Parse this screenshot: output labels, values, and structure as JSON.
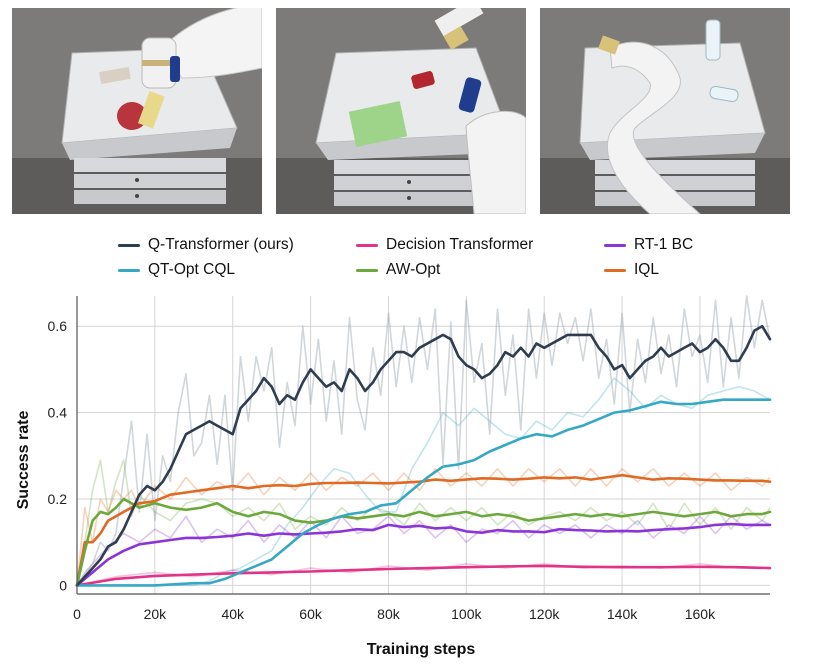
{
  "scenes": [
    {
      "name": "robot-scene-1",
      "description_icon": "robot-arm-table-scene-icon"
    },
    {
      "name": "robot-scene-2",
      "description_icon": "robot-arm-table-scene-icon"
    },
    {
      "name": "robot-scene-3",
      "description_icon": "robot-arm-table-scene-icon"
    }
  ],
  "chart_data": {
    "type": "line",
    "xlabel": "Training steps",
    "ylabel": "Success rate",
    "xlim": [
      0,
      178000
    ],
    "ylim": [
      -0.02,
      0.67
    ],
    "x_ticks": [
      0,
      20000,
      40000,
      60000,
      80000,
      100000,
      120000,
      140000,
      160000
    ],
    "x_tick_labels": [
      "0",
      "20k",
      "40k",
      "60k",
      "80k",
      "100k",
      "120k",
      "140k",
      "160k"
    ],
    "y_ticks": [
      0,
      0.2,
      0.4,
      0.6
    ],
    "y_tick_labels": [
      "0",
      "0.2",
      "0.4",
      "0.6"
    ],
    "grid": true,
    "legend_position": "top",
    "series": [
      {
        "name": "Q-Transformer (ours)",
        "color": "#2f3d4f",
        "x": [
          0,
          2000,
          4000,
          6000,
          8000,
          10000,
          12000,
          14000,
          16000,
          18000,
          20000,
          22000,
          24000,
          26000,
          28000,
          30000,
          32000,
          34000,
          36000,
          38000,
          40000,
          42000,
          44000,
          46000,
          48000,
          50000,
          52000,
          54000,
          56000,
          58000,
          60000,
          62000,
          64000,
          66000,
          68000,
          70000,
          72000,
          74000,
          76000,
          78000,
          80000,
          82000,
          84000,
          86000,
          88000,
          90000,
          92000,
          94000,
          96000,
          98000,
          100000,
          102000,
          104000,
          106000,
          108000,
          110000,
          112000,
          114000,
          116000,
          118000,
          120000,
          122000,
          124000,
          126000,
          128000,
          130000,
          132000,
          134000,
          136000,
          138000,
          140000,
          142000,
          144000,
          146000,
          148000,
          150000,
          152000,
          154000,
          156000,
          158000,
          160000,
          162000,
          164000,
          166000,
          168000,
          170000,
          172000,
          174000,
          176000,
          178000
        ],
        "values": [
          0.0,
          0.02,
          0.04,
          0.06,
          0.09,
          0.1,
          0.13,
          0.17,
          0.21,
          0.23,
          0.22,
          0.24,
          0.27,
          0.31,
          0.35,
          0.36,
          0.37,
          0.38,
          0.37,
          0.36,
          0.35,
          0.41,
          0.43,
          0.45,
          0.48,
          0.46,
          0.42,
          0.44,
          0.43,
          0.47,
          0.5,
          0.48,
          0.46,
          0.47,
          0.45,
          0.5,
          0.48,
          0.45,
          0.47,
          0.5,
          0.52,
          0.54,
          0.54,
          0.53,
          0.55,
          0.56,
          0.57,
          0.58,
          0.57,
          0.53,
          0.51,
          0.5,
          0.48,
          0.49,
          0.51,
          0.54,
          0.53,
          0.55,
          0.53,
          0.56,
          0.55,
          0.56,
          0.57,
          0.58,
          0.58,
          0.58,
          0.58,
          0.55,
          0.53,
          0.5,
          0.51,
          0.48,
          0.5,
          0.52,
          0.53,
          0.55,
          0.53,
          0.54,
          0.55,
          0.56,
          0.54,
          0.55,
          0.57,
          0.55,
          0.52,
          0.52,
          0.55,
          0.59,
          0.6,
          0.57
        ],
        "raw_values": [
          0.0,
          0.03,
          0.05,
          0.1,
          0.08,
          0.12,
          0.25,
          0.38,
          0.17,
          0.35,
          0.15,
          0.3,
          0.24,
          0.4,
          0.49,
          0.3,
          0.33,
          0.44,
          0.28,
          0.44,
          0.22,
          0.53,
          0.38,
          0.53,
          0.45,
          0.55,
          0.32,
          0.47,
          0.37,
          0.6,
          0.42,
          0.57,
          0.38,
          0.52,
          0.35,
          0.62,
          0.43,
          0.36,
          0.55,
          0.44,
          0.63,
          0.46,
          0.6,
          0.47,
          0.62,
          0.5,
          0.64,
          0.28,
          0.61,
          0.27,
          0.66,
          0.47,
          0.56,
          0.35,
          0.64,
          0.44,
          0.58,
          0.36,
          0.64,
          0.48,
          0.63,
          0.51,
          0.63,
          0.56,
          0.62,
          0.52,
          0.64,
          0.48,
          0.57,
          0.42,
          0.63,
          0.4,
          0.57,
          0.47,
          0.62,
          0.49,
          0.58,
          0.46,
          0.64,
          0.53,
          0.58,
          0.47,
          0.66,
          0.46,
          0.62,
          0.48,
          0.67,
          0.55,
          0.66,
          0.57
        ]
      },
      {
        "name": "QT-Opt CQL",
        "color": "#35a8c4",
        "x": [
          0,
          10000,
          20000,
          30000,
          34000,
          38000,
          42000,
          46000,
          50000,
          54000,
          58000,
          62000,
          66000,
          70000,
          74000,
          78000,
          82000,
          86000,
          90000,
          94000,
          98000,
          102000,
          106000,
          110000,
          114000,
          118000,
          122000,
          126000,
          130000,
          134000,
          138000,
          142000,
          146000,
          150000,
          154000,
          158000,
          162000,
          166000,
          170000,
          174000,
          178000
        ],
        "values": [
          0.0,
          0.0,
          0.0,
          0.005,
          0.005,
          0.015,
          0.03,
          0.045,
          0.06,
          0.09,
          0.12,
          0.14,
          0.155,
          0.165,
          0.17,
          0.185,
          0.19,
          0.22,
          0.25,
          0.275,
          0.28,
          0.29,
          0.31,
          0.325,
          0.34,
          0.35,
          0.345,
          0.36,
          0.37,
          0.385,
          0.4,
          0.405,
          0.415,
          0.425,
          0.42,
          0.42,
          0.425,
          0.43,
          0.43,
          0.43,
          0.43
        ],
        "raw_values": [
          0.0,
          0.0,
          0.0,
          0.0,
          0.01,
          0.03,
          0.04,
          0.06,
          0.08,
          0.14,
          0.18,
          0.23,
          0.27,
          0.26,
          0.21,
          0.17,
          0.17,
          0.27,
          0.33,
          0.4,
          0.37,
          0.41,
          0.38,
          0.35,
          0.34,
          0.38,
          0.36,
          0.4,
          0.39,
          0.43,
          0.48,
          0.45,
          0.41,
          0.44,
          0.42,
          0.41,
          0.44,
          0.45,
          0.46,
          0.45,
          0.43
        ]
      },
      {
        "name": "Decision Transformer",
        "color": "#e0338a",
        "x": [
          0,
          10000,
          20000,
          30000,
          40000,
          50000,
          60000,
          70000,
          80000,
          90000,
          100000,
          110000,
          120000,
          130000,
          140000,
          150000,
          160000,
          170000,
          178000
        ],
        "values": [
          0.0,
          0.015,
          0.022,
          0.025,
          0.028,
          0.03,
          0.032,
          0.035,
          0.038,
          0.04,
          0.042,
          0.044,
          0.045,
          0.043,
          0.042,
          0.042,
          0.043,
          0.042,
          0.04
        ],
        "raw_values": [
          0.0,
          0.02,
          0.03,
          0.02,
          0.035,
          0.025,
          0.04,
          0.03,
          0.045,
          0.035,
          0.05,
          0.04,
          0.05,
          0.04,
          0.045,
          0.04,
          0.05,
          0.04,
          0.04
        ]
      },
      {
        "name": "AW-Opt",
        "color": "#6da83c",
        "x": [
          0,
          2000,
          4000,
          6000,
          8000,
          10000,
          12000,
          14000,
          16000,
          20000,
          24000,
          28000,
          32000,
          36000,
          40000,
          44000,
          48000,
          52000,
          56000,
          60000,
          64000,
          68000,
          72000,
          76000,
          80000,
          84000,
          88000,
          92000,
          96000,
          100000,
          104000,
          108000,
          112000,
          116000,
          120000,
          124000,
          128000,
          132000,
          136000,
          140000,
          144000,
          148000,
          152000,
          156000,
          160000,
          164000,
          168000,
          172000,
          176000,
          178000
        ],
        "values": [
          0.0,
          0.08,
          0.15,
          0.17,
          0.165,
          0.18,
          0.2,
          0.19,
          0.18,
          0.19,
          0.18,
          0.175,
          0.18,
          0.19,
          0.17,
          0.16,
          0.17,
          0.165,
          0.15,
          0.145,
          0.15,
          0.16,
          0.155,
          0.16,
          0.165,
          0.16,
          0.17,
          0.16,
          0.165,
          0.17,
          0.16,
          0.165,
          0.16,
          0.15,
          0.155,
          0.16,
          0.165,
          0.16,
          0.165,
          0.16,
          0.165,
          0.17,
          0.165,
          0.16,
          0.165,
          0.17,
          0.16,
          0.165,
          0.165,
          0.17
        ],
        "raw_values": [
          0.0,
          0.1,
          0.22,
          0.29,
          0.17,
          0.24,
          0.29,
          0.16,
          0.21,
          0.17,
          0.15,
          0.19,
          0.2,
          0.19,
          0.16,
          0.18,
          0.15,
          0.19,
          0.13,
          0.16,
          0.14,
          0.18,
          0.15,
          0.18,
          0.17,
          0.14,
          0.19,
          0.15,
          0.18,
          0.15,
          0.18,
          0.14,
          0.17,
          0.14,
          0.16,
          0.17,
          0.15,
          0.18,
          0.15,
          0.17,
          0.14,
          0.19,
          0.13,
          0.19,
          0.14,
          0.18,
          0.13,
          0.18,
          0.15,
          0.18
        ]
      },
      {
        "name": "RT-1 BC",
        "color": "#8b35d6",
        "x": [
          0,
          4000,
          8000,
          12000,
          16000,
          20000,
          24000,
          28000,
          32000,
          36000,
          40000,
          44000,
          48000,
          52000,
          56000,
          60000,
          64000,
          68000,
          72000,
          76000,
          80000,
          84000,
          88000,
          92000,
          96000,
          100000,
          104000,
          108000,
          112000,
          116000,
          120000,
          124000,
          128000,
          132000,
          136000,
          140000,
          144000,
          148000,
          152000,
          156000,
          160000,
          164000,
          168000,
          172000,
          176000,
          178000
        ],
        "values": [
          0.0,
          0.03,
          0.06,
          0.08,
          0.095,
          0.1,
          0.105,
          0.11,
          0.11,
          0.112,
          0.115,
          0.12,
          0.115,
          0.12,
          0.118,
          0.12,
          0.122,
          0.125,
          0.13,
          0.128,
          0.14,
          0.135,
          0.138,
          0.132,
          0.134,
          0.125,
          0.122,
          0.128,
          0.125,
          0.125,
          0.123,
          0.13,
          0.128,
          0.127,
          0.125,
          0.126,
          0.125,
          0.128,
          0.13,
          0.132,
          0.135,
          0.14,
          0.142,
          0.14,
          0.14,
          0.14
        ],
        "raw_values": [
          0.0,
          0.05,
          0.09,
          0.12,
          0.1,
          0.13,
          0.11,
          0.16,
          0.1,
          0.13,
          0.11,
          0.15,
          0.1,
          0.14,
          0.11,
          0.15,
          0.11,
          0.16,
          0.12,
          0.13,
          0.16,
          0.12,
          0.15,
          0.11,
          0.14,
          0.1,
          0.13,
          0.12,
          0.15,
          0.11,
          0.14,
          0.12,
          0.14,
          0.11,
          0.14,
          0.12,
          0.15,
          0.11,
          0.14,
          0.12,
          0.16,
          0.12,
          0.16,
          0.13,
          0.15,
          0.14
        ]
      },
      {
        "name": "IQL",
        "color": "#e06a24",
        "x": [
          0,
          2000,
          4000,
          6000,
          8000,
          10000,
          12000,
          14000,
          16000,
          20000,
          24000,
          28000,
          32000,
          36000,
          40000,
          44000,
          48000,
          52000,
          56000,
          60000,
          64000,
          68000,
          72000,
          76000,
          80000,
          84000,
          88000,
          92000,
          96000,
          100000,
          104000,
          108000,
          112000,
          116000,
          120000,
          124000,
          128000,
          132000,
          136000,
          140000,
          144000,
          148000,
          152000,
          156000,
          160000,
          164000,
          168000,
          172000,
          176000,
          178000
        ],
        "values": [
          0.0,
          0.1,
          0.1,
          0.12,
          0.15,
          0.16,
          0.17,
          0.18,
          0.19,
          0.195,
          0.21,
          0.215,
          0.22,
          0.225,
          0.23,
          0.225,
          0.23,
          0.232,
          0.23,
          0.235,
          0.237,
          0.237,
          0.238,
          0.237,
          0.236,
          0.238,
          0.24,
          0.245,
          0.242,
          0.245,
          0.248,
          0.247,
          0.245,
          0.247,
          0.25,
          0.248,
          0.25,
          0.245,
          0.25,
          0.255,
          0.25,
          0.245,
          0.248,
          0.247,
          0.245,
          0.243,
          0.243,
          0.242,
          0.242,
          0.24
        ],
        "raw_values": [
          0.0,
          0.18,
          0.1,
          0.2,
          0.17,
          0.22,
          0.2,
          0.22,
          0.18,
          0.23,
          0.2,
          0.25,
          0.21,
          0.24,
          0.22,
          0.26,
          0.21,
          0.25,
          0.22,
          0.26,
          0.22,
          0.25,
          0.23,
          0.26,
          0.22,
          0.26,
          0.22,
          0.27,
          0.23,
          0.26,
          0.23,
          0.27,
          0.23,
          0.27,
          0.24,
          0.27,
          0.23,
          0.27,
          0.23,
          0.27,
          0.24,
          0.27,
          0.23,
          0.26,
          0.23,
          0.26,
          0.22,
          0.25,
          0.23,
          0.25
        ]
      }
    ]
  }
}
